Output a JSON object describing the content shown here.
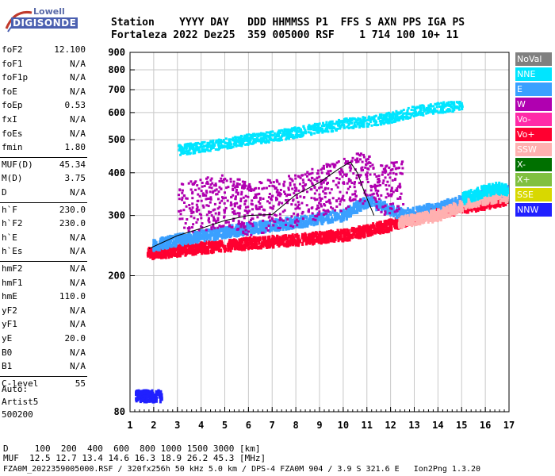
{
  "logo": {
    "line1": "Lowell",
    "line2": "DIGISONDE"
  },
  "header": {
    "row1": "Station    YYYY DAY   DDD HHMMSS P1  FFS S AXN PPS IGA PS",
    "row2": "Fortaleza 2022 Dez25  359 005000 RSF    1 714 100 10+ 11"
  },
  "params": [
    {
      "label": "foF2",
      "value": "12.100"
    },
    {
      "label": "foF1",
      "value": "N/A"
    },
    {
      "label": "foF1p",
      "value": "N/A"
    },
    {
      "label": "foE",
      "value": "N/A"
    },
    {
      "label": "foEp",
      "value": "0.53"
    },
    {
      "label": "fxI",
      "value": "N/A"
    },
    {
      "label": "foEs",
      "value": "N/A"
    },
    {
      "label": "fmin",
      "value": "1.80"
    },
    {
      "label": "MUF(D)",
      "value": "45.34"
    },
    {
      "label": "M(D)",
      "value": "3.75"
    },
    {
      "label": "D",
      "value": "N/A"
    },
    {
      "label": "h`F",
      "value": "230.0"
    },
    {
      "label": "h`F2",
      "value": "230.0"
    },
    {
      "label": "h`E",
      "value": "N/A"
    },
    {
      "label": "h`Es",
      "value": "N/A"
    },
    {
      "label": "hmF2",
      "value": "N/A"
    },
    {
      "label": "hmF1",
      "value": "N/A"
    },
    {
      "label": "hmE",
      "value": "110.0"
    },
    {
      "label": "yF2",
      "value": "N/A"
    },
    {
      "label": "yF1",
      "value": "N/A"
    },
    {
      "label": "yE",
      "value": "20.0"
    },
    {
      "label": "B0",
      "value": "N/A"
    },
    {
      "label": "B1",
      "value": "N/A"
    },
    {
      "label": "C-level",
      "value": "55"
    }
  ],
  "auto": {
    "label": "Auto:",
    "program": "Artist5",
    "version": "500200"
  },
  "legend": [
    {
      "label": "NoVal",
      "color": "#808080"
    },
    {
      "label": "NNE",
      "color": "#00e5ff"
    },
    {
      "label": "E",
      "color": "#3aa0ff"
    },
    {
      "label": "W",
      "color": "#b000b0"
    },
    {
      "label": "Vo-",
      "color": "#ff2aa8"
    },
    {
      "label": "Vo+",
      "color": "#ff0030"
    },
    {
      "label": "SSW",
      "color": "#ffb0b0"
    },
    {
      "label": "X-",
      "color": "#007000"
    },
    {
      "label": "X+",
      "color": "#80c040"
    },
    {
      "label": "SSE",
      "color": "#d8d800"
    },
    {
      "label": "NNW",
      "color": "#2020ff"
    }
  ],
  "footer": {
    "d_row": "D     100  200  400  600  800 1000 1500 3000 [km]",
    "muf_row": "MUF  12.5 12.7 13.4 14.6 16.3 18.9 26.2 45.3 [MHz]",
    "file_row": "FZA0M_2022359005000.RSF / 320fx256h 50 kHz 5.0 km / DPS-4 FZA0M 904 / 3.9 S 321.6 E   Ion2Png 1.3.20"
  },
  "chart_data": {
    "type": "scatter",
    "xlim": [
      1,
      17
    ],
    "ylim": [
      80,
      900
    ],
    "x_ticks": [
      "1",
      "2",
      "3",
      "4",
      "5",
      "6",
      "7",
      "8",
      "9",
      "10",
      "11",
      "12",
      "13",
      "14",
      "15",
      "16",
      "17"
    ],
    "y_ticks": [
      "80",
      "200",
      "300",
      "400",
      "500",
      "600",
      "700",
      "800",
      "900"
    ],
    "x_tick_values": [
      1,
      2,
      3,
      4,
      5,
      6,
      7,
      8,
      9,
      10,
      11,
      12,
      13,
      14,
      15,
      16,
      17
    ],
    "y_tick_values": [
      80,
      200,
      300,
      400,
      500,
      600,
      700,
      800,
      900
    ],
    "grid": true,
    "y_scale": "log",
    "legend_placement": "right",
    "profile_trace": {
      "x": [
        1.8,
        3.0,
        4.0,
        5.0,
        6.0,
        7.0,
        8.0,
        9.0,
        9.8,
        10.3,
        10.6,
        10.9,
        11.3
      ],
      "y": [
        240,
        262,
        275,
        290,
        300,
        302,
        345,
        375,
        410,
        430,
        400,
        350,
        300
      ]
    },
    "series": [
      {
        "name": "Vo+",
        "trace": "o-lower",
        "x": [
          1.7,
          3,
          4,
          5,
          6,
          7,
          8,
          9,
          10,
          11,
          12,
          13,
          14,
          15,
          16,
          16.9
        ],
        "y": [
          235,
          240,
          245,
          248,
          252,
          255,
          258,
          262,
          266,
          275,
          285,
          300,
          310,
          320,
          330,
          340
        ]
      },
      {
        "name": "E",
        "trace": "o-upper",
        "x": [
          1.9,
          3,
          4,
          5,
          6,
          7,
          8,
          9,
          10,
          10.5,
          11,
          12.5,
          14,
          15,
          16,
          16.9
        ],
        "y": [
          248,
          258,
          265,
          272,
          278,
          285,
          290,
          298,
          305,
          320,
          335,
          305,
          320,
          335,
          350,
          360
        ]
      },
      {
        "name": "W",
        "trace": "spread-F",
        "x": [
          3,
          4,
          5,
          6,
          7,
          8,
          9,
          10,
          10.5,
          11,
          11.5,
          12.5
        ],
        "y": [
          320,
          330,
          340,
          320,
          330,
          340,
          360,
          380,
          400,
          390,
          360,
          380
        ]
      },
      {
        "name": "SSW",
        "trace": "high-freq",
        "x": [
          12.3,
          13,
          14,
          14.5,
          15,
          15.5,
          16,
          16.5,
          16.9
        ],
        "y": [
          290,
          295,
          305,
          315,
          325,
          335,
          340,
          345,
          345
        ]
      },
      {
        "name": "NNE",
        "trace": "high-freq",
        "x": [
          15,
          15.5,
          16,
          16.5,
          16.9
        ],
        "y": [
          340,
          350,
          360,
          365,
          360
        ]
      },
      {
        "name": "NNE",
        "trace": "multi-hop",
        "x": [
          3,
          4,
          5,
          6,
          7,
          8,
          9,
          10,
          11,
          12,
          13,
          14,
          15
        ],
        "y": [
          470,
          480,
          490,
          505,
          515,
          530,
          545,
          560,
          570,
          585,
          610,
          625,
          630
        ]
      },
      {
        "name": "NNW",
        "trace": "low",
        "x": [
          1.2,
          1.5,
          2.0,
          2.3
        ],
        "y": [
          90,
          90,
          90,
          90
        ]
      }
    ]
  }
}
